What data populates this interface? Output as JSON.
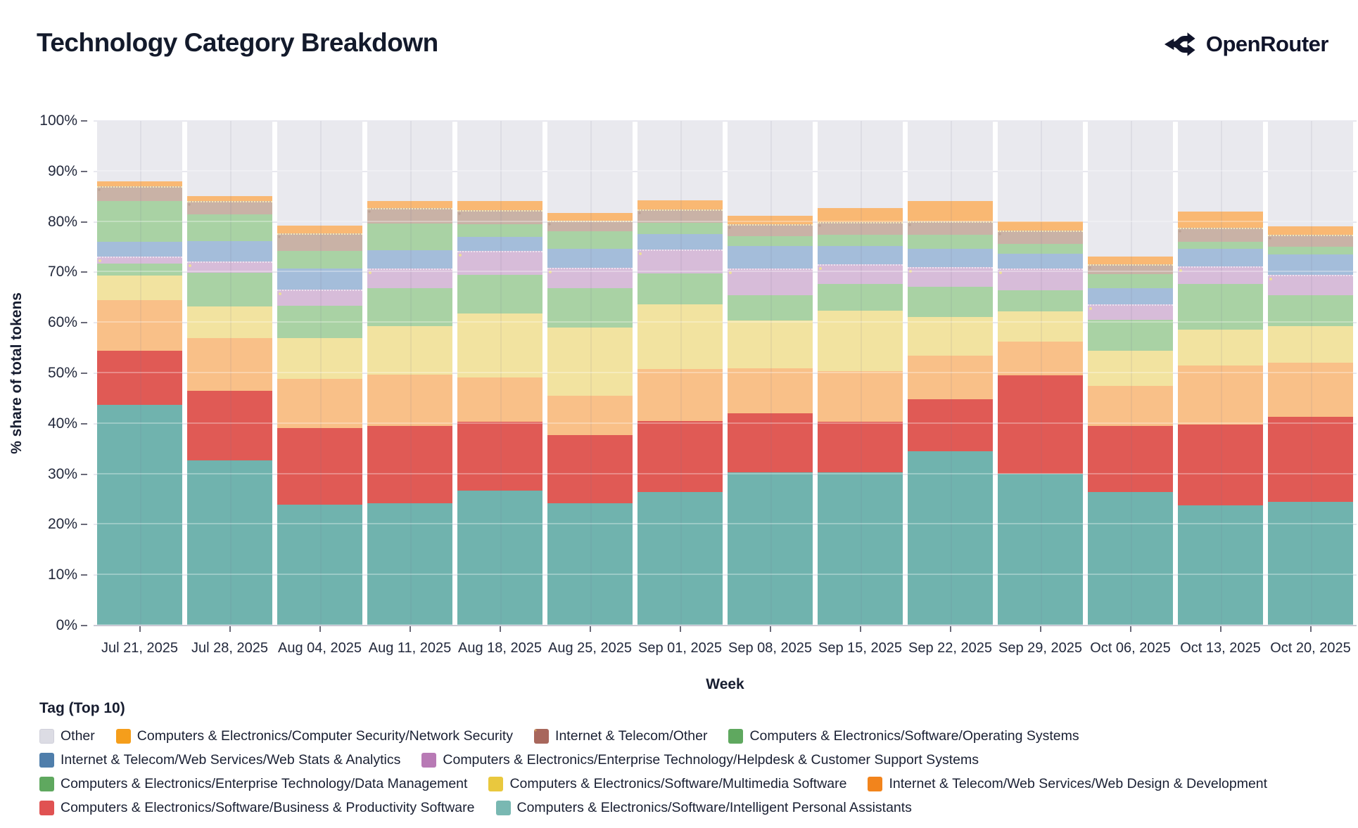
{
  "header": {
    "title": "Technology Category Breakdown",
    "brand": "OpenRouter",
    "brand_color": "#10142a"
  },
  "chart_data": {
    "type": "bar",
    "stacked": true,
    "title": "Technology Category Breakdown",
    "xlabel": "Week",
    "ylabel": "% share of total tokens",
    "ylim": [
      0,
      100
    ],
    "grid": true,
    "legend_position": "bottom",
    "yticks": [
      "0%",
      "10%",
      "20%",
      "30%",
      "40%",
      "50%",
      "60%",
      "70%",
      "80%",
      "90%",
      "100%"
    ],
    "categories": [
      "Jul 21, 2025",
      "Jul 28, 2025",
      "Aug 04, 2025",
      "Aug 11, 2025",
      "Aug 18, 2025",
      "Aug 25, 2025",
      "Sep 01, 2025",
      "Sep 08, 2025",
      "Sep 15, 2025",
      "Sep 22, 2025",
      "Sep 29, 2025",
      "Oct 06, 2025",
      "Oct 13, 2025",
      "Oct 20, 2025"
    ],
    "stack_order": "bottom-to-top",
    "series": [
      {
        "key": "ipa",
        "name": "Computers & Electronics/Software/Intelligent Personal Assistants",
        "bar_color": "#70b3ae",
        "legend_color": "#79b8b2",
        "values": [
          43.8,
          32.8,
          24.0,
          24.3,
          26.7,
          24.3,
          26.5,
          30.4,
          30.3,
          34.6,
          30.1,
          26.5,
          23.8,
          24.5
        ]
      },
      {
        "key": "bizprod",
        "name": "Computers & Electronics/Software/Business & Productivity Software",
        "bar_color": "#e05a55",
        "legend_color": "#e05252",
        "values": [
          10.7,
          13.7,
          15.1,
          15.2,
          13.7,
          13.5,
          14.1,
          11.6,
          10.1,
          10.3,
          19.5,
          13.1,
          16.0,
          16.9
        ]
      },
      {
        "key": "webdesign",
        "name": "Internet & Telecom/Web Services/Web Design & Development",
        "bar_color": "#f9c088",
        "legend_color": "#f2841c",
        "values": [
          10.0,
          10.4,
          9.8,
          10.2,
          8.8,
          7.8,
          10.3,
          9.0,
          10.0,
          8.6,
          6.7,
          7.9,
          11.7,
          10.7
        ]
      },
      {
        "key": "multimedia",
        "name": "Computers & Electronics/Software/Multimedia Software",
        "bar_color": "#f2e3a0",
        "legend_color": "#e9c83e",
        "values": [
          4.8,
          6.3,
          8.1,
          9.6,
          12.6,
          13.4,
          12.8,
          9.5,
          12.0,
          7.7,
          6.0,
          7.0,
          7.1,
          7.3
        ]
      },
      {
        "key": "datamgmt",
        "name": "Computers & Electronics/Enterprise Technology/Data Management",
        "bar_color": "#a9d2a4",
        "legend_color": "#5fa85f",
        "values": [
          2.4,
          6.7,
          6.4,
          7.5,
          7.7,
          7.9,
          6.1,
          4.9,
          5.3,
          6.0,
          4.2,
          6.1,
          9.1,
          6.1
        ]
      },
      {
        "key": "helpdesk",
        "name": "Computers & Electronics/Enterprise Technology/Helpdesk & Customer Support Systems",
        "bar_color": "#d7bcd9",
        "legend_color": "#b87ab5",
        "values": [
          1.4,
          2.2,
          3.2,
          3.9,
          4.8,
          4.0,
          4.7,
          5.3,
          3.9,
          3.8,
          4.2,
          3.1,
          3.5,
          4.0
        ]
      },
      {
        "key": "webstats",
        "name": "Internet & Telecom/Web Services/Web Stats & Analytics",
        "bar_color": "#a4bdda",
        "legend_color": "#4f7eab",
        "values": [
          2.9,
          4.1,
          4.1,
          3.7,
          2.7,
          3.8,
          3.1,
          4.5,
          3.6,
          3.6,
          3.0,
          3.1,
          3.5,
          4.0
        ]
      },
      {
        "key": "os",
        "name": "Computers & Electronics/Software/Operating Systems",
        "bar_color": "#a9d2a4",
        "legend_color": "#5fa85f",
        "values": [
          8.1,
          5.3,
          3.5,
          5.3,
          2.6,
          3.4,
          2.2,
          1.9,
          2.2,
          2.9,
          2.0,
          2.8,
          1.3,
          1.6
        ]
      },
      {
        "key": "itother",
        "name": "Internet & Telecom/Other",
        "bar_color": "#c9b2a6",
        "legend_color": "#a8675c",
        "values": [
          2.9,
          2.6,
          3.5,
          3.0,
          2.7,
          2.2,
          2.7,
          2.4,
          2.5,
          2.6,
          2.6,
          2.0,
          2.9,
          2.3
        ]
      },
      {
        "key": "netsec",
        "name": "Computers & Electronics/Computer Security/Network Security",
        "bar_color": "#f9b873",
        "legend_color": "#f59e1b",
        "values": [
          1.0,
          1.0,
          1.5,
          1.5,
          1.9,
          1.5,
          1.8,
          1.7,
          2.9,
          4.0,
          1.8,
          1.5,
          3.2,
          1.7
        ]
      },
      {
        "key": "other",
        "name": "Other",
        "bar_color": "#e9e9ee",
        "legend_color": "#dcdce4",
        "values": [
          12.0,
          14.9,
          20.8,
          15.8,
          15.8,
          18.2,
          15.7,
          18.8,
          17.2,
          15.9,
          19.9,
          26.9,
          17.9,
          20.9
        ]
      }
    ],
    "legend": {
      "title": "Tag (Top 10)",
      "order": [
        "other",
        "netsec",
        "itother",
        "os",
        "webstats",
        "helpdesk",
        "datamgmt",
        "multimedia",
        "webdesign",
        "bizprod",
        "ipa"
      ]
    }
  }
}
